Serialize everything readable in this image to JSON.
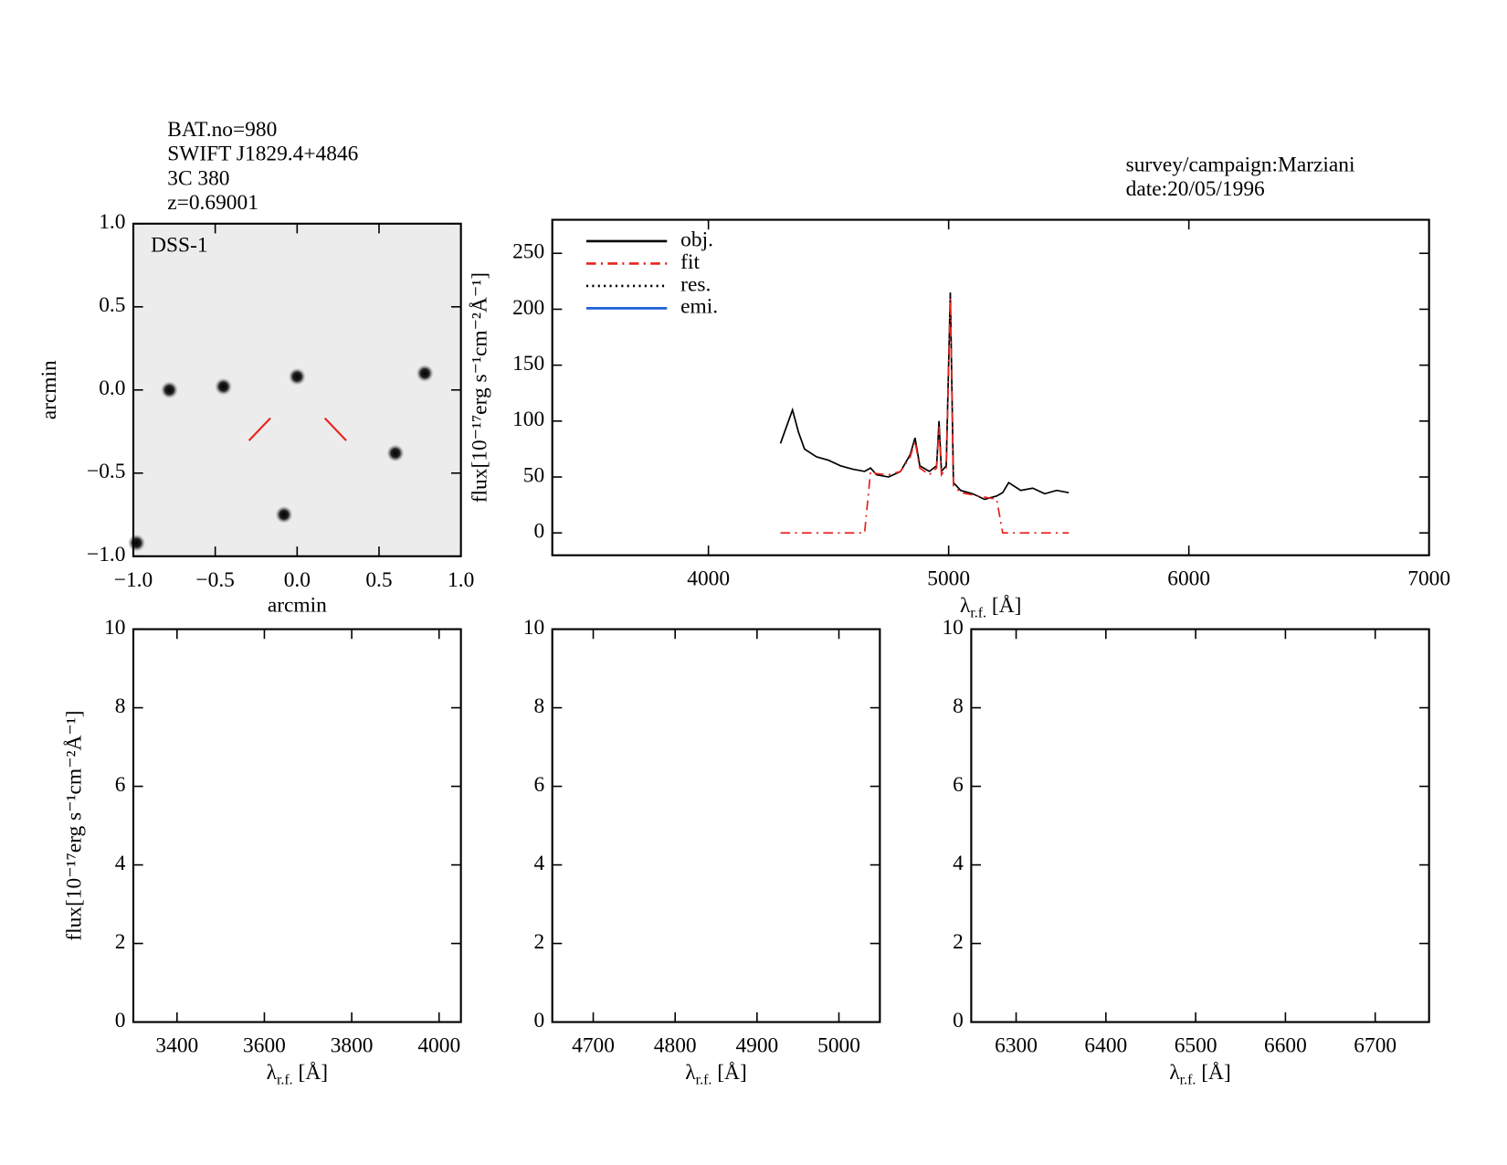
{
  "header": {
    "lines": [
      "BAT.no=980",
      "SWIFT J1829.4+4846",
      "3C 380",
      "z=0.69001"
    ],
    "survey": "survey/campaign:Marziani",
    "date": "date:20/05/1996"
  },
  "chart_data": [
    {
      "type": "scatter",
      "label": "DSS-1",
      "xlabel": "arcmin",
      "ylabel": "arcmin",
      "x": [
        -0.45,
        0.0,
        0.78,
        0.6,
        -0.08,
        -0.98,
        -0.78
      ],
      "values": [
        0.02,
        0.08,
        0.1,
        -0.38,
        -0.75,
        -0.92,
        0.0
      ],
      "color": "#111111",
      "xlim": [
        -1.0,
        1.0
      ],
      "ylim": [
        -1.0,
        1.0
      ],
      "xticks": [
        {
          "value": -1,
          "label": "−1.0"
        },
        {
          "value": -0.5,
          "label": "−0.5"
        },
        {
          "value": 0,
          "label": "0.0"
        },
        0.5,
        {
          "value": 1,
          "label": "1.0"
        }
      ],
      "yticks": [
        {
          "value": -1,
          "label": "−1.0"
        },
        {
          "value": -0.5,
          "label": "−0.5"
        },
        {
          "value": 0,
          "label": "0.0"
        },
        0.5,
        {
          "value": 1,
          "label": "1.0"
        }
      ]
    },
    {
      "type": "line",
      "xlabel": [
        "λ",
        "r.f.",
        " [Å]"
      ],
      "ylabel": "flux[10⁻¹⁷erg s⁻¹cm⁻²Å⁻¹]",
      "legend": "upper left",
      "x": [
        4300,
        4325,
        4350,
        4375,
        4400,
        4450,
        4500,
        4550,
        4600,
        4650,
        4675,
        4700,
        4750,
        4800,
        4840,
        4860,
        4880,
        4920,
        4950,
        4960,
        4970,
        4990,
        5007,
        5020,
        5050,
        5100,
        5150,
        5200,
        5225,
        5250,
        5300,
        5350,
        5400,
        5450,
        5500
      ],
      "series": [
        {
          "name": "obj.",
          "color": "#000000",
          "linestyle": "solid",
          "values": [
            80,
            95,
            110,
            90,
            75,
            68,
            65,
            60,
            57,
            55,
            58,
            52,
            50,
            55,
            70,
            85,
            60,
            55,
            60,
            100,
            55,
            60,
            215,
            45,
            38,
            35,
            30,
            33,
            36,
            45,
            38,
            40,
            35,
            38,
            36
          ]
        },
        {
          "name": "fit",
          "color": "#e8231d",
          "linestyle": "dashdot",
          "values": [
            0,
            0,
            0,
            0,
            0,
            0,
            0,
            0,
            0,
            0,
            55,
            53,
            52,
            55,
            68,
            82,
            58,
            52,
            58,
            95,
            52,
            58,
            210,
            42,
            36,
            34,
            32,
            30,
            0,
            0,
            0,
            0,
            0,
            0,
            0
          ]
        },
        {
          "name": "res.",
          "color": "#000000",
          "linestyle": "dotted",
          "values": [
            null,
            null,
            null,
            null,
            null,
            null,
            null,
            null,
            null,
            null,
            null,
            null,
            null,
            null,
            null,
            null,
            null,
            null,
            null,
            null,
            null,
            null,
            null,
            null,
            null,
            null,
            null,
            null,
            null,
            null,
            null,
            null,
            null,
            null,
            null
          ]
        },
        {
          "name": "emi.",
          "color": "#1f5fd6",
          "linestyle": "solid",
          "values": [
            null,
            null,
            null,
            null,
            null,
            null,
            null,
            null,
            null,
            null,
            null,
            null,
            null,
            null,
            null,
            null,
            null,
            null,
            null,
            null,
            null,
            null,
            null,
            null,
            null,
            null,
            null,
            null,
            null,
            null,
            null,
            null,
            null,
            null,
            null
          ]
        }
      ],
      "xlim": [
        3350,
        7000
      ],
      "ylim": [
        -20,
        280
      ],
      "xticks": [
        4000,
        5000,
        6000,
        7000
      ],
      "yticks": [
        0,
        50,
        100,
        150,
        200,
        250
      ]
    },
    {
      "type": "line",
      "xlabel": [
        "λ",
        "r.f.",
        " [Å]"
      ],
      "ylabel": "flux[10⁻¹⁷erg s⁻¹cm⁻²Å⁻¹]",
      "series": [],
      "xlim": [
        3300,
        4050
      ],
      "ylim": [
        0,
        10
      ],
      "xticks": [
        3400,
        3600,
        3800,
        4000
      ],
      "yticks": [
        0,
        2,
        4,
        6,
        8,
        10
      ]
    },
    {
      "type": "line",
      "xlabel": [
        "λ",
        "r.f.",
        " [Å]"
      ],
      "series": [],
      "xlim": [
        4650,
        5050
      ],
      "ylim": [
        0,
        10
      ],
      "xticks": [
        4700,
        4800,
        4900,
        5000
      ],
      "yticks": [
        0,
        2,
        4,
        6,
        8,
        10
      ]
    },
    {
      "type": "line",
      "xlabel": [
        "λ",
        "r.f.",
        " [Å]"
      ],
      "series": [],
      "xlim": [
        6250,
        6760
      ],
      "ylim": [
        0,
        10
      ],
      "xticks": [
        6300,
        6400,
        6500,
        6600,
        6700
      ],
      "yticks": [
        0,
        2,
        4,
        6,
        8,
        10
      ]
    }
  ]
}
